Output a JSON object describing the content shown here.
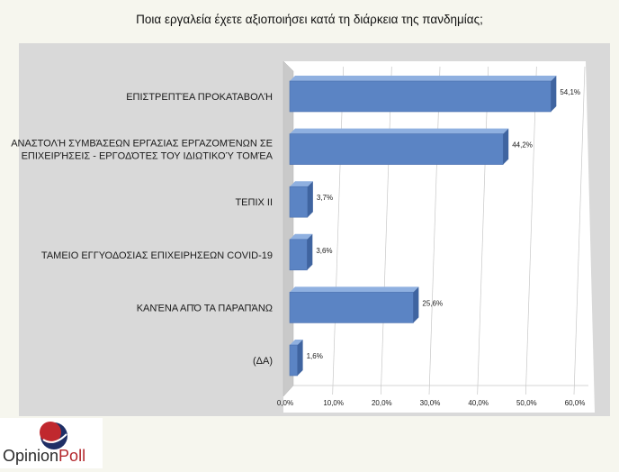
{
  "chart_data": {
    "type": "bar",
    "orientation": "horizontal",
    "title": "Ποια εργαλεία έχετε αξιοποιήσει κατά τη διάρκεια της πανδημίας;",
    "categories": [
      [
        "ΕΠΙΣΤΡΕΠΤΈΑ ΠΡΟΚΑΤΑΒΟΛΉ"
      ],
      [
        "ΑΝΑΣΤΟΛΉ ΣΥΜΒΆΣΕΩΝ ΕΡΓΑΣΙΑΣ ΕΡΓΑΖΟΜΈΝΩΝ ΣΕ",
        "ΕΠΙΧΕΙΡΉΣΕΙΣ - ΕΡΓΟΔΌΤΕΣ ΤΟΥ ΙΔΙΩΤΙΚΟΎ ΤΟΜΈΑ"
      ],
      [
        "ΤΕΠΙΧ ΙΙ"
      ],
      [
        "ΤΑΜΕΙΟ ΕΓΓΥΟΔΟΣΙΑΣ ΕΠΙΧΕΙΡΗΣΕΩΝ COVID-19"
      ],
      [
        "ΚΑΝΈΝΑ ΑΠΌ ΤΑ ΠΑΡΑΠΆΝΩ"
      ],
      [
        "(ΔΑ)"
      ]
    ],
    "values": [
      54.1,
      44.2,
      3.7,
      3.6,
      25.6,
      1.6
    ],
    "value_labels": [
      "54,1%",
      "44,2%",
      "3,7%",
      "3,6%",
      "25,6%",
      "1,6%"
    ],
    "xlim": [
      0,
      60
    ],
    "xticks": [
      0,
      10,
      20,
      30,
      40,
      50,
      60
    ],
    "xtick_labels": [
      "0,0%",
      "10,0%",
      "20,0%",
      "30,0%",
      "40,0%",
      "50,0%",
      "60,0%"
    ],
    "grid": true,
    "style": "3d",
    "colors": {
      "bar_front": "#5b84c4",
      "bar_top": "#8fb0e0",
      "bar_side": "#3f64a0",
      "plot_bg": "#ffffff",
      "wall": "#c9c9c9",
      "frame_bg": "#d9d9d9",
      "grid": "#c8c8c8"
    }
  },
  "logo": {
    "word_opinion": "Opinion",
    "word_poll": "Poll",
    "colors": {
      "red": "#c0282e",
      "navy": "#1e2f66"
    }
  }
}
